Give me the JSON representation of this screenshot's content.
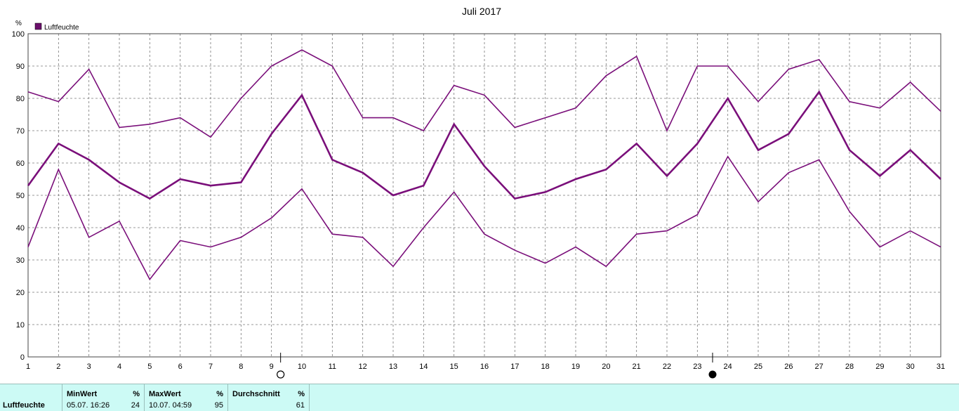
{
  "chart_data": {
    "type": "line",
    "title": "Juli 2017",
    "ylabel": "%",
    "ylim": [
      0,
      100
    ],
    "y_ticks": [
      0,
      10,
      20,
      30,
      40,
      50,
      60,
      70,
      80,
      90,
      100
    ],
    "x": [
      1,
      2,
      3,
      4,
      5,
      6,
      7,
      8,
      9,
      10,
      11,
      12,
      13,
      14,
      15,
      16,
      17,
      18,
      19,
      20,
      21,
      22,
      23,
      24,
      25,
      26,
      27,
      28,
      29,
      30,
      31
    ],
    "grid": true,
    "legend": {
      "position": "top-left",
      "label": "Luftfeuchte",
      "color": "#6b0f6b"
    },
    "series_color": "#7a0f7a",
    "series": [
      {
        "values": [
          82,
          79,
          89,
          71,
          72,
          74,
          68,
          80,
          90,
          95,
          90,
          74,
          74,
          70,
          84,
          81,
          71,
          74,
          77,
          87,
          93,
          70,
          90,
          90,
          79,
          89,
          92,
          79,
          77,
          85,
          76
        ]
      },
      {
        "values": [
          53,
          66,
          61,
          54,
          49,
          55,
          53,
          54,
          69,
          81,
          61,
          57,
          50,
          53,
          72,
          59,
          49,
          51,
          55,
          58,
          66,
          56,
          66,
          80,
          64,
          69,
          82,
          64,
          56,
          64,
          55
        ]
      },
      {
        "values": [
          34,
          58,
          37,
          42,
          24,
          36,
          34,
          37,
          43,
          52,
          38,
          37,
          28,
          40,
          51,
          38,
          33,
          29,
          34,
          28,
          38,
          39,
          44,
          62,
          48,
          57,
          61,
          45,
          34,
          39,
          34
        ]
      }
    ],
    "annotations": [
      {
        "type": "full-moon",
        "x": 9.3
      },
      {
        "type": "new-moon",
        "x": 23.5
      }
    ]
  },
  "stats": {
    "row_label": "Luftfeuchte",
    "min": {
      "header": "MinWert",
      "unit": "%",
      "timestamp": "05.07.  16:26",
      "value": "24"
    },
    "max": {
      "header": "MaxWert",
      "unit": "%",
      "timestamp": "10.07.  04:59",
      "value": "95"
    },
    "avg": {
      "header": "Durchschnitt",
      "unit": "%",
      "value": "61"
    }
  }
}
